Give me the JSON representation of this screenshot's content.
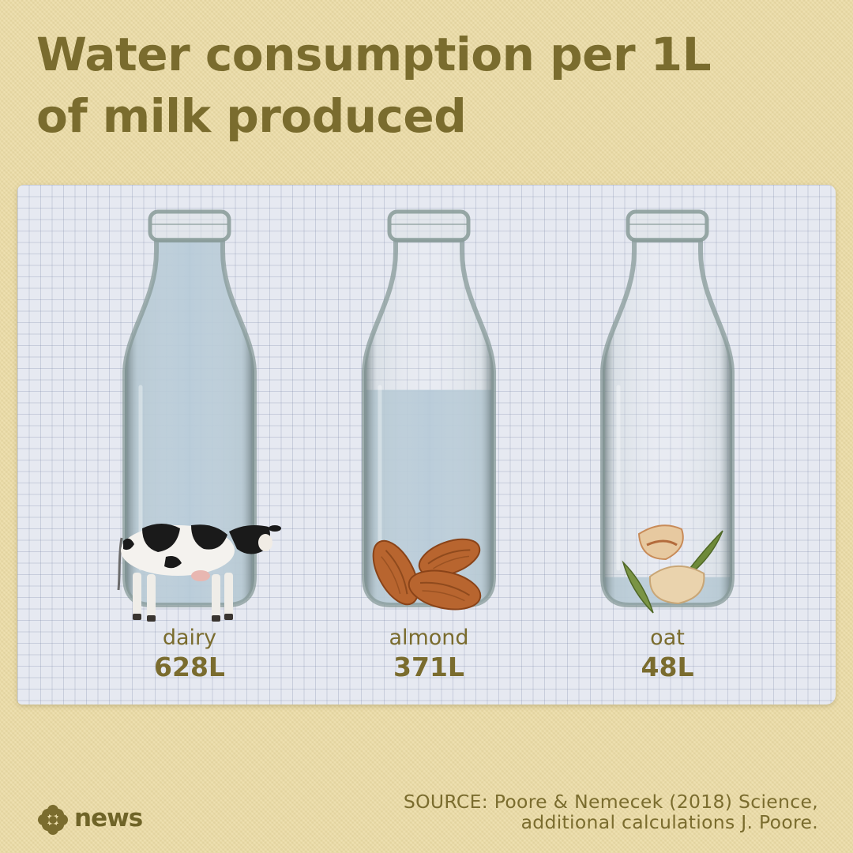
{
  "title": {
    "line1": "Water consumption per 1L",
    "line2": "of milk produced"
  },
  "source": {
    "line1": "SOURCE: Poore & Nemecek (2018) Science,",
    "line2": "additional calculations J. Poore."
  },
  "logo": {
    "text": "news",
    "icon": "cbc-gem-icon"
  },
  "colors": {
    "text": "#7a6c2e",
    "background": "#ecdca6",
    "paper": "#e6e9f1",
    "water": "#aec4d3",
    "glass": "#879a98"
  },
  "chart_data": {
    "type": "bar",
    "categories": [
      "dairy",
      "almond",
      "oat"
    ],
    "values": [
      628,
      371,
      48
    ],
    "value_labels": [
      "628L",
      "371L",
      "48L"
    ],
    "unit": "L",
    "icons": [
      "cow-icon",
      "almond-icon",
      "oat-icon"
    ],
    "title": "Water consumption per 1L of milk produced"
  }
}
